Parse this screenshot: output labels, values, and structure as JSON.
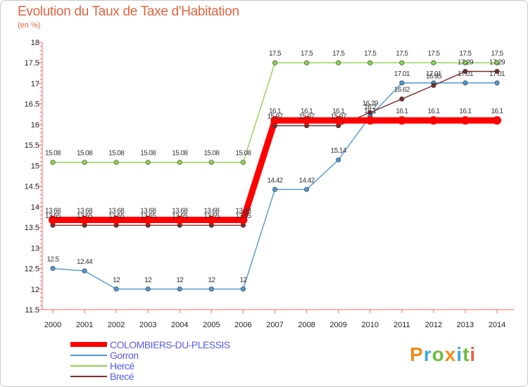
{
  "header": {
    "title": "Evolution du Taux de Taxe d'Habitation",
    "subtitle": "(en %)"
  },
  "logo": {
    "chars": [
      "P",
      "r",
      "o",
      "x",
      "i",
      "t",
      "i"
    ],
    "colors": [
      "#f28b1e",
      "#3ea8e0",
      "#6dbb3c",
      "#f28b1e",
      "#3ea8e0",
      "#6dbb3c",
      "#e1633f"
    ]
  },
  "chart_data": {
    "type": "line",
    "title": "Evolution du Taux de Taxe d'Habitation",
    "subtitle": "(en %)",
    "xlabel": "",
    "ylabel": "",
    "x": [
      "2000",
      "2001",
      "2002",
      "2003",
      "2004",
      "2005",
      "2006",
      "2007",
      "2008",
      "2009",
      "2010",
      "2011",
      "2012",
      "2013",
      "2014"
    ],
    "ylim": [
      11.5,
      18
    ],
    "yticks": [
      "11.5",
      "12",
      "12.5",
      "13",
      "13.5",
      "14",
      "14.5",
      "15",
      "15.5",
      "16",
      "16.5",
      "17",
      "17.5",
      "18"
    ],
    "grid": false,
    "legend": "bottom-left",
    "series": [
      {
        "name": "COLOMBIERS-DU-PLESSIS",
        "color": "#ff0000",
        "values": [
          13.68,
          13.68,
          13.68,
          13.68,
          13.68,
          13.68,
          13.68,
          16.1,
          16.1,
          16.1,
          16.1,
          16.1,
          16.1,
          16.1,
          16.1
        ],
        "labels": [
          "13.68",
          "13.68",
          "13.68",
          "13.68",
          "13.68",
          "13.68",
          "13.68",
          "16.1",
          "16.1",
          "16.1",
          "16.1",
          "16.1",
          "16.1",
          "16.1",
          "16.1"
        ]
      },
      {
        "name": "Gorron",
        "color": "#4f97d4",
        "values": [
          12.5,
          12.44,
          12,
          12,
          12,
          12,
          12,
          14.42,
          14.42,
          15.14,
          16.2,
          17.01,
          17.01,
          17.01,
          17.01
        ],
        "labels": [
          "12.5",
          "12.44",
          "12",
          "12",
          "12",
          "12",
          "12",
          "14.42",
          "14.42",
          "15.14",
          "16.2",
          "17.01",
          "17.01",
          "17.01",
          "17.01"
        ]
      },
      {
        "name": "Hercé",
        "color": "#8fd14f",
        "values": [
          15.08,
          15.08,
          15.08,
          15.08,
          15.08,
          15.08,
          15.08,
          17.5,
          17.5,
          17.5,
          17.5,
          17.5,
          17.5,
          17.5,
          17.5
        ],
        "labels": [
          "15.08",
          "15.08",
          "15.08",
          "15.08",
          "15.08",
          "15.08",
          "15.08",
          "17.5",
          "17.5",
          "17.5",
          "17.5",
          "17.5",
          "17.5",
          "17.5",
          "17.5"
        ]
      },
      {
        "name": "Brecé",
        "color": "#7a2d2d",
        "values": [
          13.55,
          13.55,
          13.55,
          13.55,
          13.55,
          13.55,
          13.55,
          15.97,
          15.97,
          15.97,
          16.29,
          16.62,
          16.95,
          17.29,
          17.29
        ],
        "labels": [
          "13.55",
          "13.55",
          "13.55",
          "13.55",
          "13.55",
          "13.55",
          "13.55",
          "15.97",
          "15.97",
          "15.97",
          "16.29",
          "16.62",
          "16.95",
          "17.29",
          "17.29"
        ]
      }
    ]
  }
}
